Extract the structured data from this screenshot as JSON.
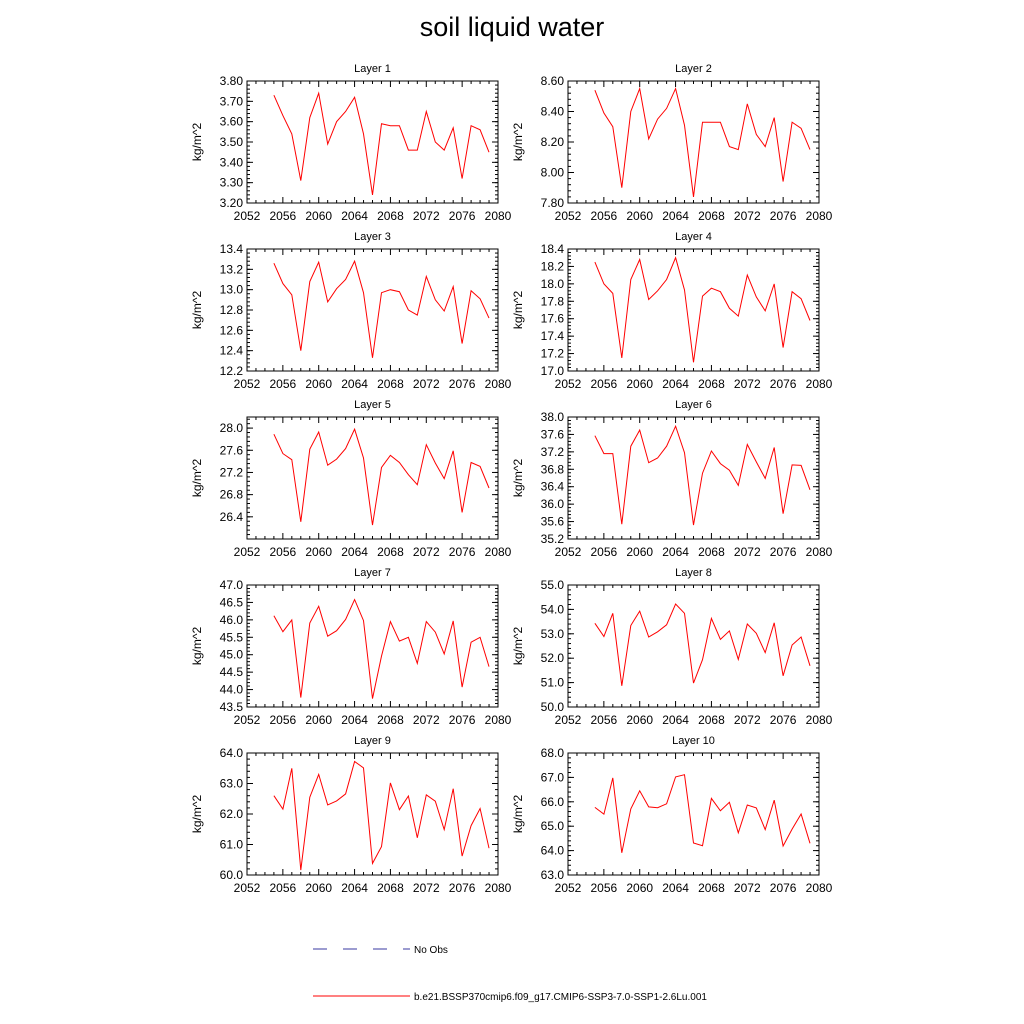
{
  "title": "soil liquid water",
  "colors": {
    "model": "#ff0000",
    "obs": "#3a3aa0",
    "axis": "#000000"
  },
  "legend": {
    "obs_label": "No Obs",
    "model_label": "b.e21.BSSP370cmip6.f09_g17.CMIP6-SSP3-7.0-SSP1-2.6Lu.001"
  },
  "chart_data": [
    {
      "type": "line",
      "title": "Layer 1",
      "ylabel": "kg/m^2",
      "xlim": [
        2052,
        2080
      ],
      "xticks": [
        2052,
        2056,
        2060,
        2064,
        2068,
        2072,
        2076,
        2080
      ],
      "ylim": [
        3.2,
        3.8
      ],
      "yticks": [
        "3.20",
        "3.30",
        "3.40",
        "3.50",
        "3.60",
        "3.70",
        "3.80"
      ],
      "ytick_step_minor": 0.02,
      "x": [
        2055,
        2056,
        2057,
        2058,
        2059,
        2060,
        2061,
        2062,
        2063,
        2064,
        2065,
        2066,
        2067,
        2068,
        2069,
        2070,
        2071,
        2072,
        2073,
        2074,
        2075,
        2076,
        2077,
        2078,
        2079
      ],
      "series": [
        {
          "values": [
            3.73,
            3.63,
            3.54,
            3.31,
            3.62,
            3.74,
            3.49,
            3.6,
            3.65,
            3.72,
            3.54,
            3.24,
            3.59,
            3.58,
            3.58,
            3.46,
            3.46,
            3.65,
            3.5,
            3.46,
            3.57,
            3.32,
            3.58,
            3.56,
            3.45
          ]
        }
      ]
    },
    {
      "type": "line",
      "title": "Layer 2",
      "ylabel": "kg/m^2",
      "xlim": [
        2052,
        2080
      ],
      "xticks": [
        2052,
        2056,
        2060,
        2064,
        2068,
        2072,
        2076,
        2080
      ],
      "ylim": [
        7.8,
        8.6
      ],
      "yticks": [
        "7.80",
        "8.00",
        "8.20",
        "8.40",
        "8.60"
      ],
      "ytick_step_minor": 0.04,
      "x": [
        2055,
        2056,
        2057,
        2058,
        2059,
        2060,
        2061,
        2062,
        2063,
        2064,
        2065,
        2066,
        2067,
        2068,
        2069,
        2070,
        2071,
        2072,
        2073,
        2074,
        2075,
        2076,
        2077,
        2078,
        2079
      ],
      "series": [
        {
          "values": [
            8.54,
            8.39,
            8.3,
            7.9,
            8.4,
            8.55,
            8.22,
            8.35,
            8.42,
            8.55,
            8.31,
            7.84,
            8.33,
            8.33,
            8.33,
            8.17,
            8.15,
            8.45,
            8.25,
            8.17,
            8.36,
            7.94,
            8.33,
            8.29,
            8.15
          ]
        }
      ]
    },
    {
      "type": "line",
      "title": "Layer 3",
      "ylabel": "kg/m^2",
      "xlim": [
        2052,
        2080
      ],
      "xticks": [
        2052,
        2056,
        2060,
        2064,
        2068,
        2072,
        2076,
        2080
      ],
      "ylim": [
        12.2,
        13.4
      ],
      "yticks": [
        "12.2",
        "12.4",
        "12.6",
        "12.8",
        "13.0",
        "13.2",
        "13.4"
      ],
      "ytick_step_minor": 0.04,
      "x": [
        2055,
        2056,
        2057,
        2058,
        2059,
        2060,
        2061,
        2062,
        2063,
        2064,
        2065,
        2066,
        2067,
        2068,
        2069,
        2070,
        2071,
        2072,
        2073,
        2074,
        2075,
        2076,
        2077,
        2078,
        2079
      ],
      "series": [
        {
          "values": [
            13.26,
            13.06,
            12.95,
            12.4,
            13.08,
            13.27,
            12.88,
            13.01,
            13.1,
            13.28,
            12.97,
            12.33,
            12.97,
            13.0,
            12.98,
            12.8,
            12.75,
            13.13,
            12.9,
            12.79,
            13.03,
            12.47,
            12.99,
            12.91,
            12.72
          ]
        }
      ]
    },
    {
      "type": "line",
      "title": "Layer 4",
      "ylabel": "kg/m^2",
      "xlim": [
        2052,
        2080
      ],
      "xticks": [
        2052,
        2056,
        2060,
        2064,
        2068,
        2072,
        2076,
        2080
      ],
      "ylim": [
        17.0,
        18.4
      ],
      "yticks": [
        "17.0",
        "17.2",
        "17.4",
        "17.6",
        "17.8",
        "18.0",
        "18.2",
        "18.4"
      ],
      "ytick_step_minor": 0.04,
      "x": [
        2055,
        2056,
        2057,
        2058,
        2059,
        2060,
        2061,
        2062,
        2063,
        2064,
        2065,
        2066,
        2067,
        2068,
        2069,
        2070,
        2071,
        2072,
        2073,
        2074,
        2075,
        2076,
        2077,
        2078,
        2079
      ],
      "series": [
        {
          "values": [
            18.25,
            18.0,
            17.89,
            17.15,
            18.05,
            18.28,
            17.82,
            17.92,
            18.05,
            18.3,
            17.93,
            17.1,
            17.86,
            17.95,
            17.91,
            17.72,
            17.63,
            18.1,
            17.85,
            17.69,
            18.0,
            17.27,
            17.91,
            17.83,
            17.58
          ]
        }
      ]
    },
    {
      "type": "line",
      "title": "Layer 5",
      "ylabel": "kg/m^2",
      "xlim": [
        2052,
        2080
      ],
      "xticks": [
        2052,
        2056,
        2060,
        2064,
        2068,
        2072,
        2076,
        2080
      ],
      "ylim": [
        26.0,
        28.2
      ],
      "yticks": [
        "26.4",
        "26.8",
        "27.2",
        "27.6",
        "28.0"
      ],
      "ytick_step_minor": 0.08,
      "x": [
        2055,
        2056,
        2057,
        2058,
        2059,
        2060,
        2061,
        2062,
        2063,
        2064,
        2065,
        2066,
        2067,
        2068,
        2069,
        2070,
        2071,
        2072,
        2073,
        2074,
        2075,
        2076,
        2077,
        2078,
        2079
      ],
      "series": [
        {
          "values": [
            27.89,
            27.54,
            27.43,
            26.31,
            27.62,
            27.93,
            27.33,
            27.44,
            27.63,
            27.98,
            27.46,
            26.25,
            27.29,
            27.51,
            27.38,
            27.16,
            26.98,
            27.7,
            27.37,
            27.09,
            27.59,
            26.48,
            27.38,
            27.31,
            26.92
          ]
        }
      ]
    },
    {
      "type": "line",
      "title": "Layer 6",
      "ylabel": "kg/m^2",
      "xlim": [
        2052,
        2080
      ],
      "xticks": [
        2052,
        2056,
        2060,
        2064,
        2068,
        2072,
        2076,
        2080
      ],
      "ylim": [
        35.2,
        38.0
      ],
      "yticks": [
        "35.2",
        "35.6",
        "36.0",
        "36.4",
        "36.8",
        "37.2",
        "37.6",
        "38.0"
      ],
      "ytick_step_minor": 0.08,
      "x": [
        2055,
        2056,
        2057,
        2058,
        2059,
        2060,
        2061,
        2062,
        2063,
        2064,
        2065,
        2066,
        2067,
        2068,
        2069,
        2070,
        2071,
        2072,
        2073,
        2074,
        2075,
        2076,
        2077,
        2078,
        2079
      ],
      "series": [
        {
          "values": [
            37.57,
            37.16,
            37.16,
            35.54,
            37.33,
            37.7,
            36.95,
            37.06,
            37.33,
            37.79,
            37.18,
            35.52,
            36.71,
            37.22,
            36.93,
            36.78,
            36.43,
            37.37,
            36.97,
            36.59,
            37.3,
            35.78,
            36.9,
            36.89,
            36.33
          ]
        }
      ]
    },
    {
      "type": "line",
      "title": "Layer 7",
      "ylabel": "kg/m^2",
      "xlim": [
        2052,
        2080
      ],
      "xticks": [
        2052,
        2056,
        2060,
        2064,
        2068,
        2072,
        2076,
        2080
      ],
      "ylim": [
        43.5,
        47.0
      ],
      "yticks": [
        "43.5",
        "44.0",
        "44.5",
        "45.0",
        "45.5",
        "46.0",
        "46.5",
        "47.0"
      ],
      "ytick_step_minor": 0.1,
      "x": [
        2055,
        2056,
        2057,
        2058,
        2059,
        2060,
        2061,
        2062,
        2063,
        2064,
        2065,
        2066,
        2067,
        2068,
        2069,
        2070,
        2071,
        2072,
        2073,
        2074,
        2075,
        2076,
        2077,
        2078,
        2079
      ],
      "series": [
        {
          "values": [
            46.12,
            45.66,
            46.0,
            43.77,
            45.91,
            46.39,
            45.53,
            45.69,
            46.01,
            46.58,
            45.98,
            43.74,
            44.96,
            45.95,
            45.39,
            45.5,
            44.75,
            45.95,
            45.65,
            45.02,
            45.97,
            44.07,
            45.36,
            45.5,
            44.66
          ]
        }
      ]
    },
    {
      "type": "line",
      "title": "Layer 8",
      "ylabel": "kg/m^2",
      "xlim": [
        2052,
        2080
      ],
      "xticks": [
        2052,
        2056,
        2060,
        2064,
        2068,
        2072,
        2076,
        2080
      ],
      "ylim": [
        50.0,
        55.0
      ],
      "yticks": [
        "50.0",
        "51.0",
        "52.0",
        "53.0",
        "54.0",
        "55.0"
      ],
      "ytick_step_minor": 0.2,
      "x": [
        2055,
        2056,
        2057,
        2058,
        2059,
        2060,
        2061,
        2062,
        2063,
        2064,
        2065,
        2066,
        2067,
        2068,
        2069,
        2070,
        2071,
        2072,
        2073,
        2074,
        2075,
        2076,
        2077,
        2078,
        2079
      ],
      "series": [
        {
          "values": [
            53.43,
            52.89,
            53.84,
            50.87,
            53.34,
            53.93,
            52.87,
            53.08,
            53.37,
            54.22,
            53.84,
            50.98,
            51.94,
            53.63,
            52.77,
            53.12,
            51.95,
            53.4,
            53.02,
            52.23,
            53.45,
            51.28,
            52.54,
            52.87,
            51.69
          ]
        }
      ]
    },
    {
      "type": "line",
      "title": "Layer 9",
      "ylabel": "kg/m^2",
      "xlim": [
        2052,
        2080
      ],
      "xticks": [
        2052,
        2056,
        2060,
        2064,
        2068,
        2072,
        2076,
        2080
      ],
      "ylim": [
        60.0,
        64.0
      ],
      "yticks": [
        "60.0",
        "61.0",
        "62.0",
        "63.0",
        "64.0"
      ],
      "ytick_step_minor": 0.2,
      "x": [
        2055,
        2056,
        2057,
        2058,
        2059,
        2060,
        2061,
        2062,
        2063,
        2064,
        2065,
        2066,
        2067,
        2068,
        2069,
        2070,
        2071,
        2072,
        2073,
        2074,
        2075,
        2076,
        2077,
        2078,
        2079
      ],
      "series": [
        {
          "values": [
            62.6,
            62.16,
            63.5,
            60.16,
            62.55,
            63.3,
            62.3,
            62.43,
            62.66,
            63.72,
            63.51,
            60.38,
            60.93,
            63.02,
            62.14,
            62.59,
            61.22,
            62.63,
            62.42,
            61.49,
            62.83,
            60.62,
            61.62,
            62.18,
            60.88
          ]
        }
      ]
    },
    {
      "type": "line",
      "title": "Layer 10",
      "ylabel": "kg/m^2",
      "xlim": [
        2052,
        2080
      ],
      "xticks": [
        2052,
        2056,
        2060,
        2064,
        2068,
        2072,
        2076,
        2080
      ],
      "ylim": [
        63.0,
        68.0
      ],
      "yticks": [
        "63.0",
        "64.0",
        "65.0",
        "66.0",
        "67.0",
        "68.0"
      ],
      "ytick_step_minor": 0.2,
      "x": [
        2055,
        2056,
        2057,
        2058,
        2059,
        2060,
        2061,
        2062,
        2063,
        2064,
        2065,
        2066,
        2067,
        2068,
        2069,
        2070,
        2071,
        2072,
        2073,
        2074,
        2075,
        2076,
        2077,
        2078,
        2079
      ],
      "series": [
        {
          "values": [
            65.77,
            65.49,
            66.98,
            63.91,
            65.71,
            66.45,
            65.79,
            65.76,
            65.92,
            67.02,
            67.11,
            64.31,
            64.2,
            66.14,
            65.63,
            65.98,
            64.73,
            65.87,
            65.75,
            64.86,
            66.07,
            64.19,
            64.88,
            65.5,
            64.3
          ]
        }
      ]
    }
  ]
}
